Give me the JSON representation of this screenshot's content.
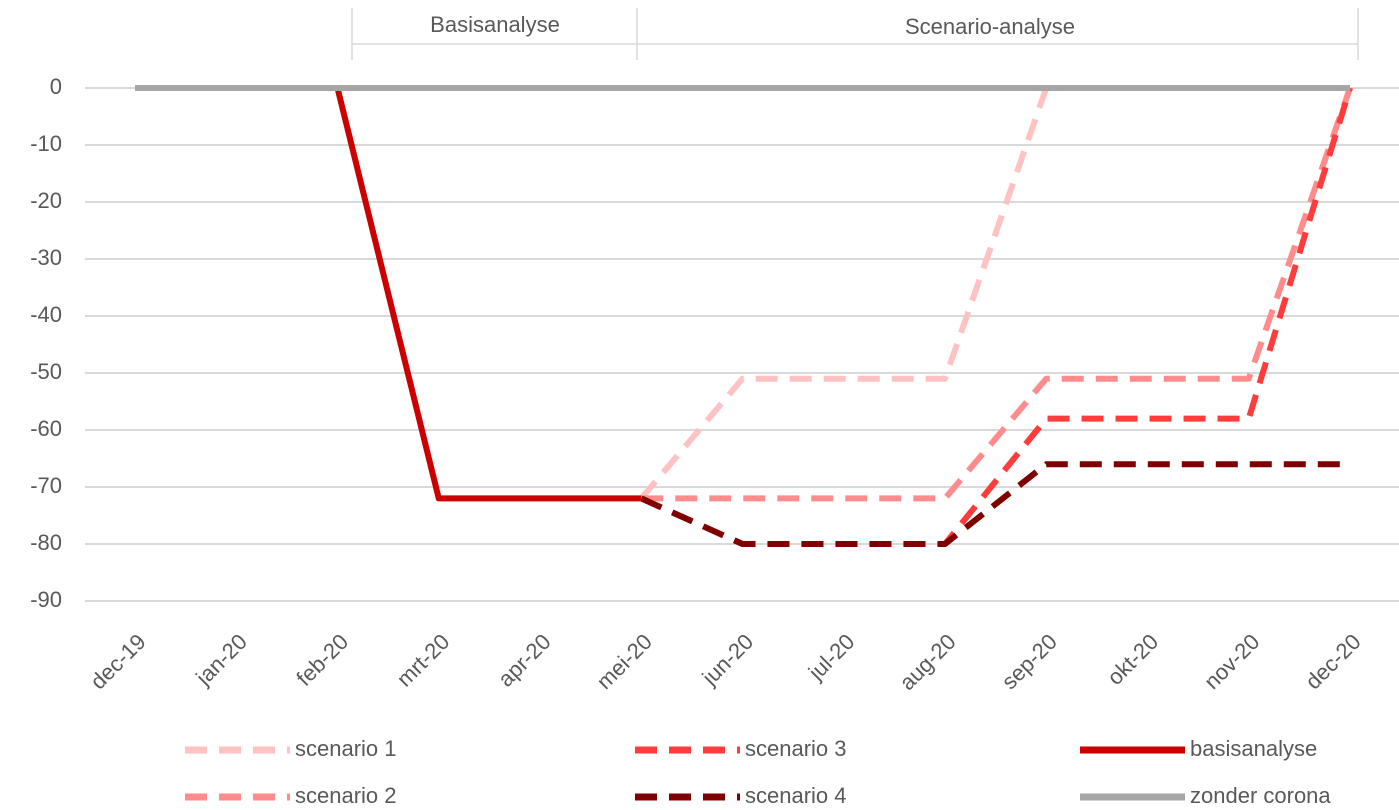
{
  "chart_data": {
    "type": "line",
    "annotations": [
      "Basisanalyse",
      "Scenario-analyse"
    ],
    "categories": [
      "dec-19",
      "jan-20",
      "feb-20",
      "mrt-20",
      "apr-20",
      "mei-20",
      "jun-20",
      "jul-20",
      "aug-20",
      "sep-20",
      "okt-20",
      "nov-20",
      "dec-20"
    ],
    "series": [
      {
        "name": "scenario 1",
        "color": "#ffc2c2",
        "dashed": true,
        "values": [
          null,
          null,
          null,
          null,
          null,
          -72,
          -51,
          -51,
          -51,
          0,
          null,
          null,
          null
        ]
      },
      {
        "name": "scenario 2",
        "color": "#ff8c8c",
        "dashed": true,
        "values": [
          null,
          null,
          null,
          null,
          null,
          -72,
          -72,
          -72,
          -72,
          -51,
          -51,
          -51,
          0
        ]
      },
      {
        "name": "scenario 3",
        "color": "#ff3c3c",
        "dashed": true,
        "values": [
          null,
          null,
          null,
          null,
          null,
          -72,
          -80,
          -80,
          -80,
          -58,
          -58,
          -58,
          0
        ]
      },
      {
        "name": "scenario 4",
        "color": "#7f0000",
        "dashed": true,
        "values": [
          null,
          null,
          null,
          null,
          null,
          -72,
          -80,
          -80,
          -80,
          -66,
          -66,
          -66,
          -66
        ]
      },
      {
        "name": "basisanalyse",
        "color": "#cc0000",
        "dashed": false,
        "values": [
          null,
          null,
          0,
          -72,
          -72,
          -72,
          null,
          null,
          null,
          null,
          null,
          null,
          null
        ]
      },
      {
        "name": "zonder corona",
        "color": "#a6a6a6",
        "dashed": false,
        "values": [
          0,
          0,
          0,
          0,
          0,
          0,
          0,
          0,
          0,
          0,
          0,
          0,
          0
        ]
      }
    ],
    "ylim": [
      -90,
      0
    ],
    "yticks": [
      0,
      -10,
      -20,
      -30,
      -40,
      -50,
      -60,
      -70,
      -80,
      -90
    ],
    "grid": true
  }
}
